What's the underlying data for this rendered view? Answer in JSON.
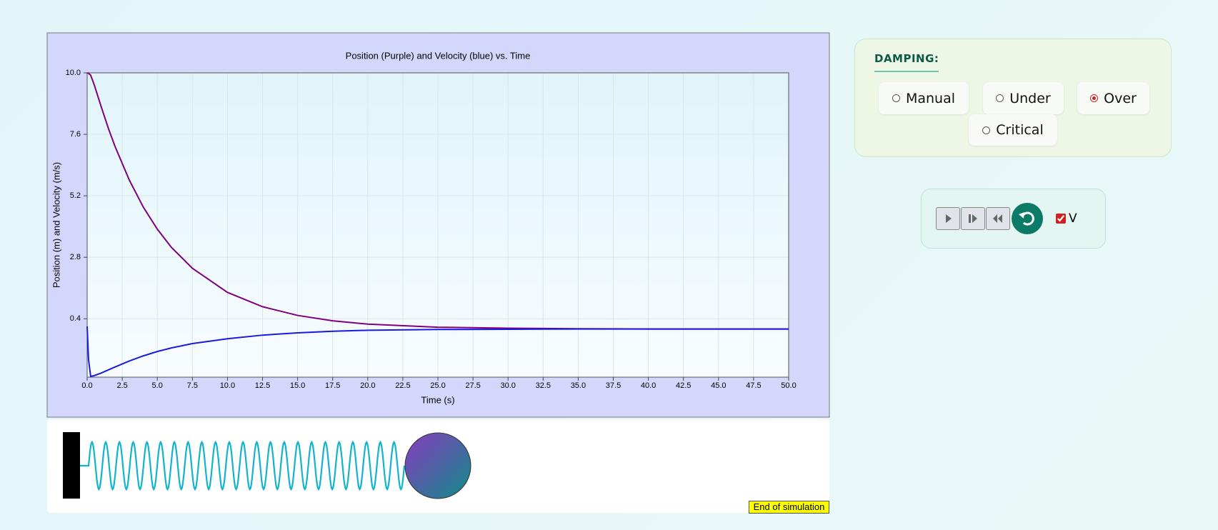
{
  "chart_data": {
    "type": "line",
    "title": "Position (Purple) and Velocity (blue) vs. Time",
    "x_label": "Time (s)",
    "y_label": "Position (m) and Velocity (m/s)",
    "x": [
      0,
      0.1,
      0.25,
      0.5,
      1,
      1.5,
      2,
      3,
      4,
      5,
      6,
      7.5,
      10,
      12.5,
      15,
      17.5,
      20,
      25,
      30,
      35,
      40,
      45,
      50
    ],
    "series": [
      {
        "color": "#800080",
        "values": [
          10.0,
          9.98,
          9.91,
          9.54,
          8.68,
          7.85,
          7.11,
          5.82,
          4.76,
          3.9,
          3.19,
          2.37,
          1.43,
          0.87,
          0.53,
          0.32,
          0.19,
          0.07,
          0.03,
          0.01,
          0.0,
          0.0,
          0.0
        ]
      },
      {
        "color": "#1a1ae0",
        "values": [
          0.1,
          -1.2,
          -1.85,
          -1.82,
          -1.72,
          -1.6,
          -1.48,
          -1.25,
          -1.05,
          -0.88,
          -0.74,
          -0.57,
          -0.38,
          -0.24,
          -0.15,
          -0.09,
          -0.05,
          -0.02,
          -0.01,
          0.0,
          0.0,
          0.0,
          0.0
        ]
      }
    ],
    "xlim": [
      0,
      50
    ],
    "ylim": [
      -1.88,
      10
    ],
    "xticks": [
      {
        "value": 0,
        "label": "0.0"
      },
      2.5,
      {
        "value": 5,
        "label": "5.0"
      },
      7.5,
      {
        "value": 10,
        "label": "10.0"
      },
      12.5,
      {
        "value": 15,
        "label": "15.0"
      },
      17.5,
      {
        "value": 20,
        "label": "20.0"
      },
      22.5,
      {
        "value": 25,
        "label": "25.0"
      },
      27.5,
      {
        "value": 30,
        "label": "30.0"
      },
      32.5,
      {
        "value": 35,
        "label": "35.0"
      },
      37.5,
      {
        "value": 40,
        "label": "40.0"
      },
      42.5,
      {
        "value": 45,
        "label": "45.0"
      },
      47.5,
      {
        "value": 50,
        "label": "50.0"
      }
    ],
    "yticks": [
      0.4,
      2.8,
      5.2,
      7.6,
      {
        "value": 10,
        "label": "10.0"
      }
    ],
    "grid": true
  },
  "damping": {
    "title": "DAMPING:",
    "options": [
      "Manual",
      "Under",
      "Over",
      "Critical"
    ],
    "selected": 2
  },
  "controls": {
    "checkbox_label": "V",
    "checkbox_checked": true
  },
  "status": "End of simulation"
}
